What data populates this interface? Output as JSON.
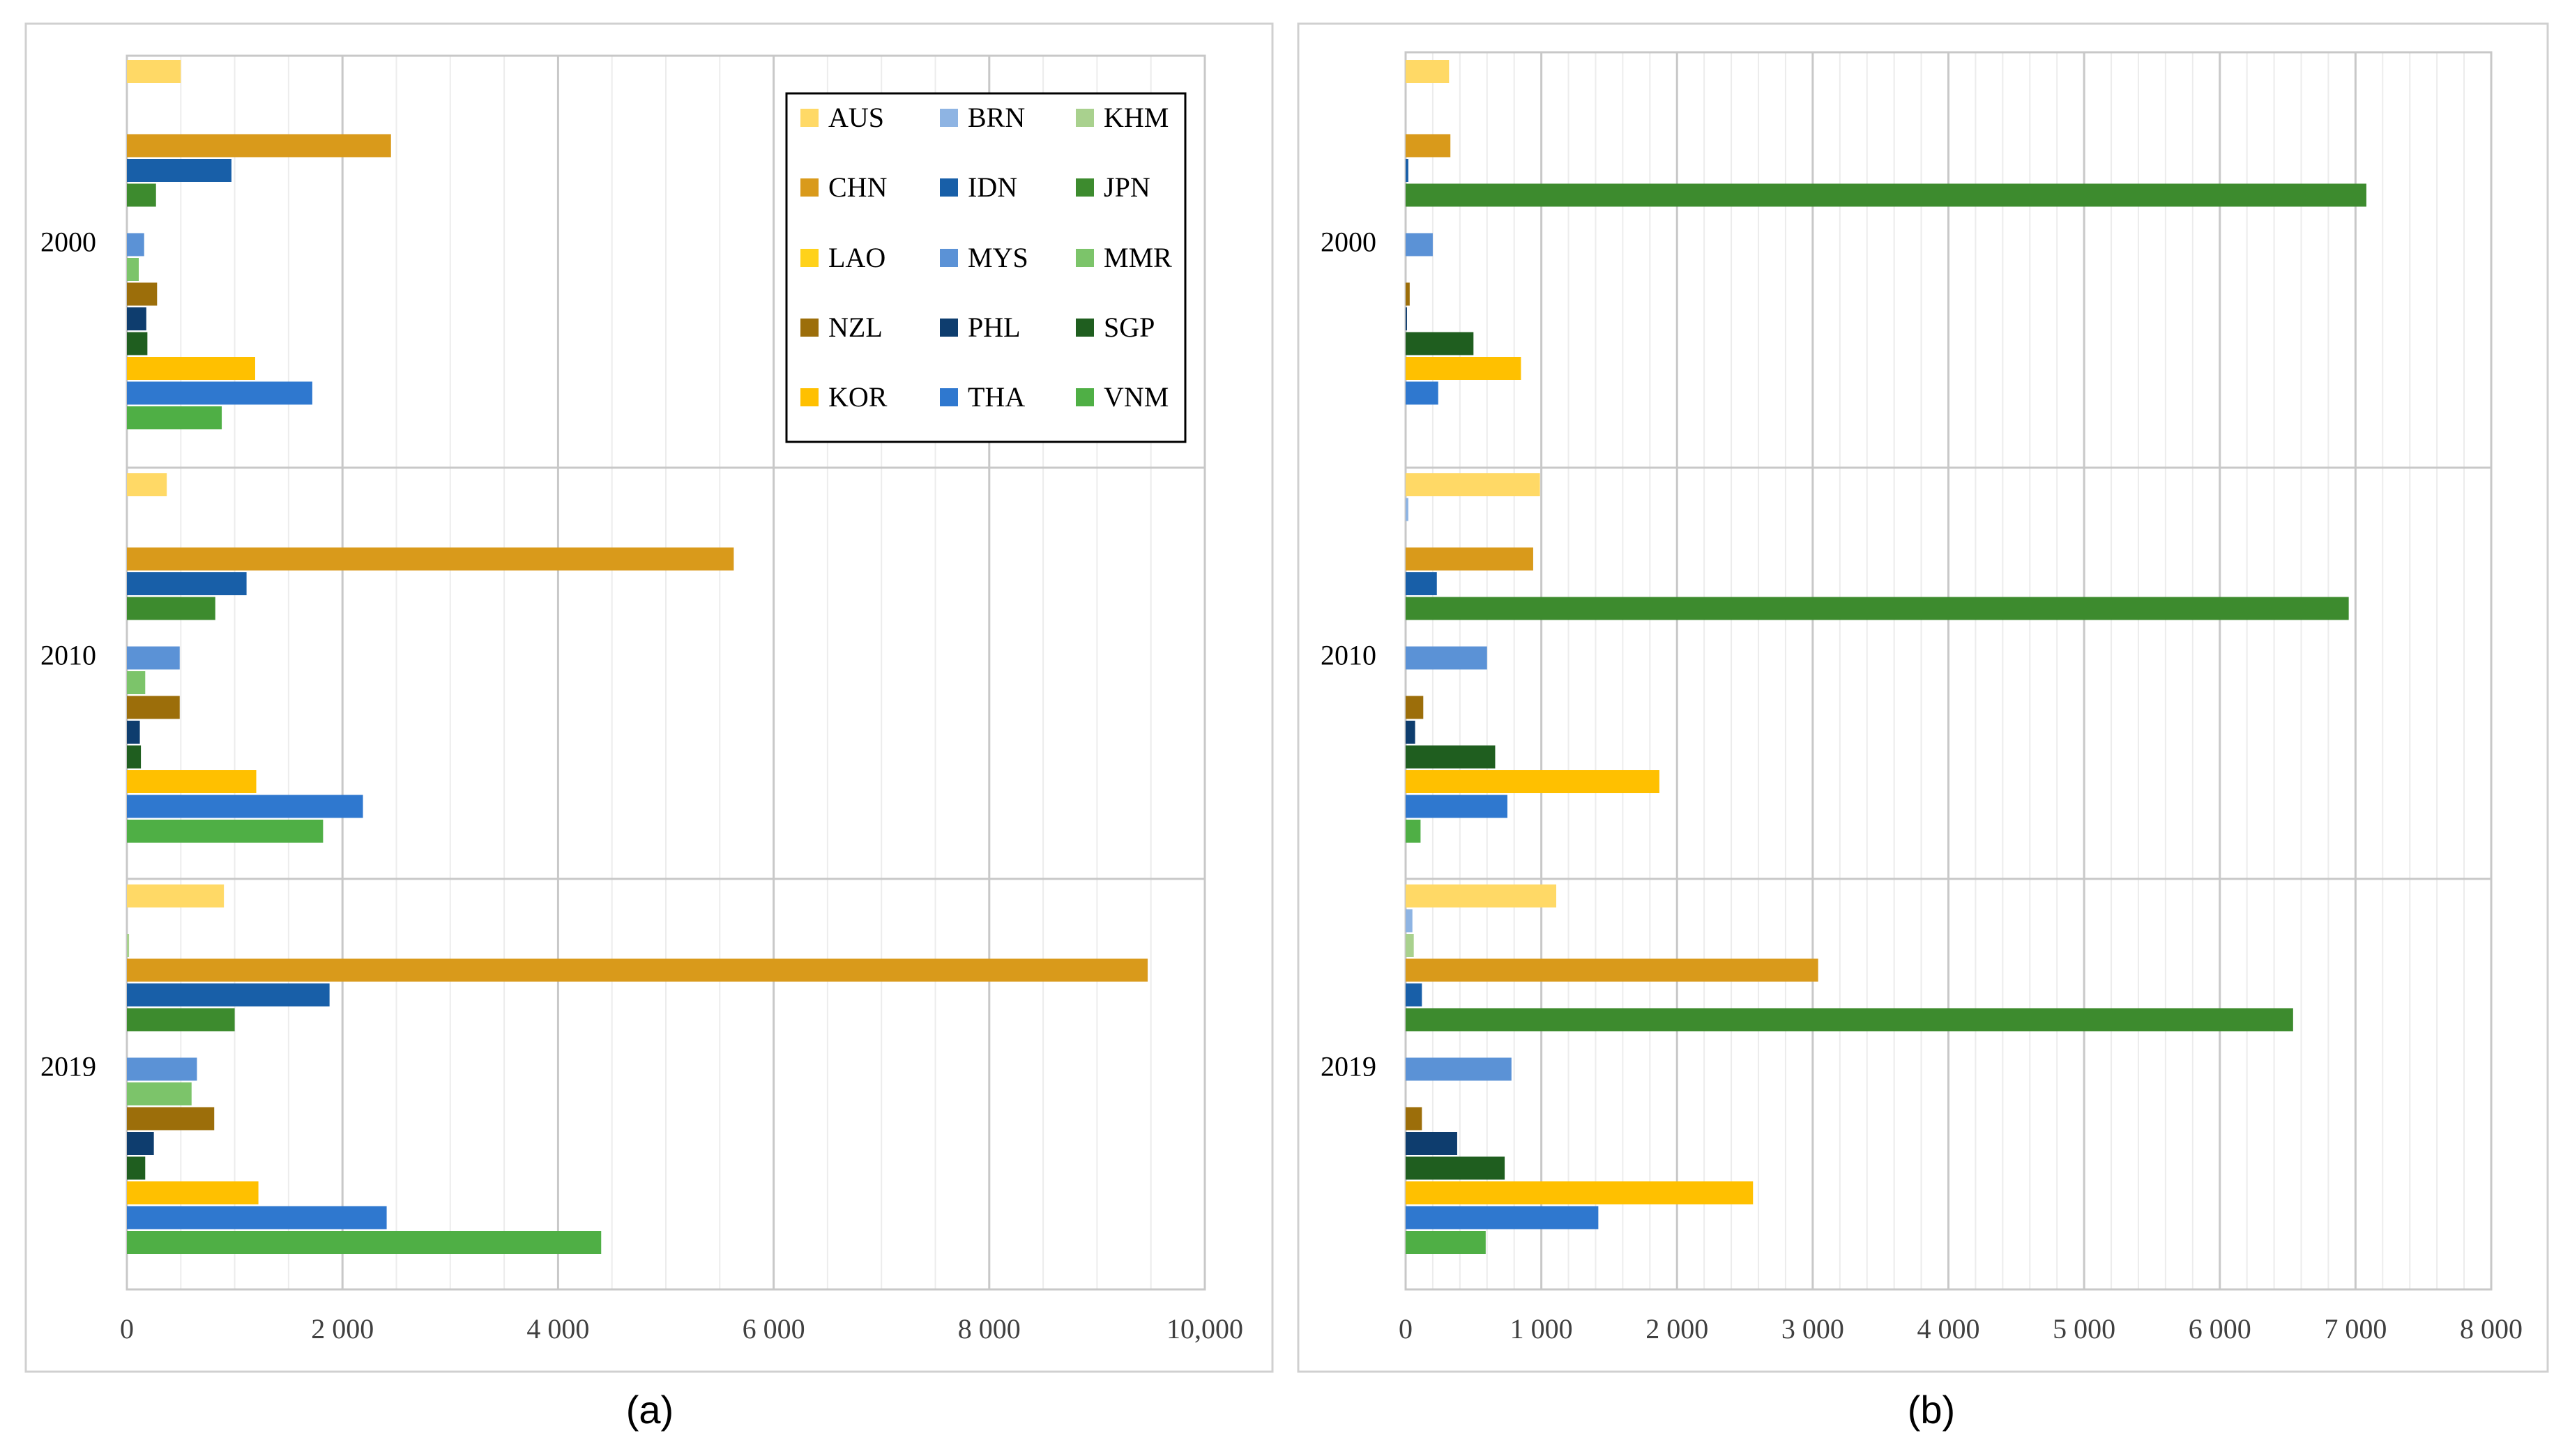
{
  "countries": [
    {
      "code": "AUS",
      "color": "#FFD966"
    },
    {
      "code": "BRN",
      "color": "#8EB4E3"
    },
    {
      "code": "KHM",
      "color": "#A9D18E"
    },
    {
      "code": "CHN",
      "color": "#D99A1B"
    },
    {
      "code": "IDN",
      "color": "#185FA8"
    },
    {
      "code": "JPN",
      "color": "#3D8B2E"
    },
    {
      "code": "LAO",
      "color": "#FFD21A"
    },
    {
      "code": "MYS",
      "color": "#5B92D6"
    },
    {
      "code": "MMR",
      "color": "#7CC46A"
    },
    {
      "code": "NZL",
      "color": "#9C6E0A"
    },
    {
      "code": "PHL",
      "color": "#0E3D6E"
    },
    {
      "code": "SGP",
      "color": "#1F5E1F"
    },
    {
      "code": "KOR",
      "color": "#FFC000"
    },
    {
      "code": "THA",
      "color": "#2F78CF"
    },
    {
      "code": "VNM",
      "color": "#4FAF45"
    }
  ],
  "chart_data": [
    {
      "type": "bar",
      "orientation": "horizontal",
      "caption": "(a)",
      "categories": [
        "2000",
        "2010",
        "2019"
      ],
      "xlim": [
        0,
        10000
      ],
      "xticks": [
        0,
        2000,
        4000,
        6000,
        8000,
        10000
      ],
      "xtick_labels": [
        "0",
        "2 000",
        "4 000",
        "6 000",
        "8 000",
        "10,000"
      ],
      "grid": true,
      "legend": "top-right",
      "series": [
        {
          "name": "AUS",
          "values": [
            500,
            370,
            900
          ]
        },
        {
          "name": "BRN",
          "values": [
            0,
            0,
            0
          ]
        },
        {
          "name": "KHM",
          "values": [
            0,
            0,
            20
          ]
        },
        {
          "name": "CHN",
          "values": [
            2450,
            5630,
            9470
          ]
        },
        {
          "name": "IDN",
          "values": [
            970,
            1110,
            1880
          ]
        },
        {
          "name": "JPN",
          "values": [
            270,
            820,
            1000
          ]
        },
        {
          "name": "LAO",
          "values": [
            0,
            0,
            0
          ]
        },
        {
          "name": "MYS",
          "values": [
            160,
            490,
            650
          ]
        },
        {
          "name": "MMR",
          "values": [
            110,
            170,
            600
          ]
        },
        {
          "name": "NZL",
          "values": [
            280,
            490,
            810
          ]
        },
        {
          "name": "PHL",
          "values": [
            180,
            120,
            250
          ]
        },
        {
          "name": "SGP",
          "values": [
            190,
            130,
            170
          ]
        },
        {
          "name": "KOR",
          "values": [
            1190,
            1200,
            1220
          ]
        },
        {
          "name": "THA",
          "values": [
            1720,
            2190,
            2410
          ]
        },
        {
          "name": "VNM",
          "values": [
            880,
            1820,
            4400
          ]
        }
      ]
    },
    {
      "type": "bar",
      "orientation": "horizontal",
      "caption": "(b)",
      "categories": [
        "2000",
        "2010",
        "2019"
      ],
      "xlim": [
        0,
        8000
      ],
      "xticks": [
        0,
        1000,
        2000,
        3000,
        4000,
        5000,
        6000,
        7000,
        8000
      ],
      "xtick_labels": [
        "0",
        "1 000",
        "2 000",
        "3 000",
        "4 000",
        "5 000",
        "6 000",
        "7 000",
        "8 000"
      ],
      "grid": true,
      "legend": "none",
      "series": [
        {
          "name": "AUS",
          "values": [
            320,
            990,
            1110
          ]
        },
        {
          "name": "BRN",
          "values": [
            0,
            20,
            50
          ]
        },
        {
          "name": "KHM",
          "values": [
            0,
            0,
            60
          ]
        },
        {
          "name": "CHN",
          "values": [
            330,
            940,
            3040
          ]
        },
        {
          "name": "IDN",
          "values": [
            20,
            230,
            120
          ]
        },
        {
          "name": "JPN",
          "values": [
            7080,
            6950,
            6540
          ]
        },
        {
          "name": "LAO",
          "values": [
            0,
            0,
            0
          ]
        },
        {
          "name": "MYS",
          "values": [
            200,
            600,
            780
          ]
        },
        {
          "name": "MMR",
          "values": [
            0,
            0,
            0
          ]
        },
        {
          "name": "NZL",
          "values": [
            30,
            130,
            120
          ]
        },
        {
          "name": "PHL",
          "values": [
            10,
            70,
            380
          ]
        },
        {
          "name": "SGP",
          "values": [
            500,
            660,
            730
          ]
        },
        {
          "name": "KOR",
          "values": [
            850,
            1870,
            2560
          ]
        },
        {
          "name": "THA",
          "values": [
            240,
            750,
            1420
          ]
        },
        {
          "name": "VNM",
          "values": [
            0,
            110,
            590
          ]
        }
      ]
    }
  ]
}
